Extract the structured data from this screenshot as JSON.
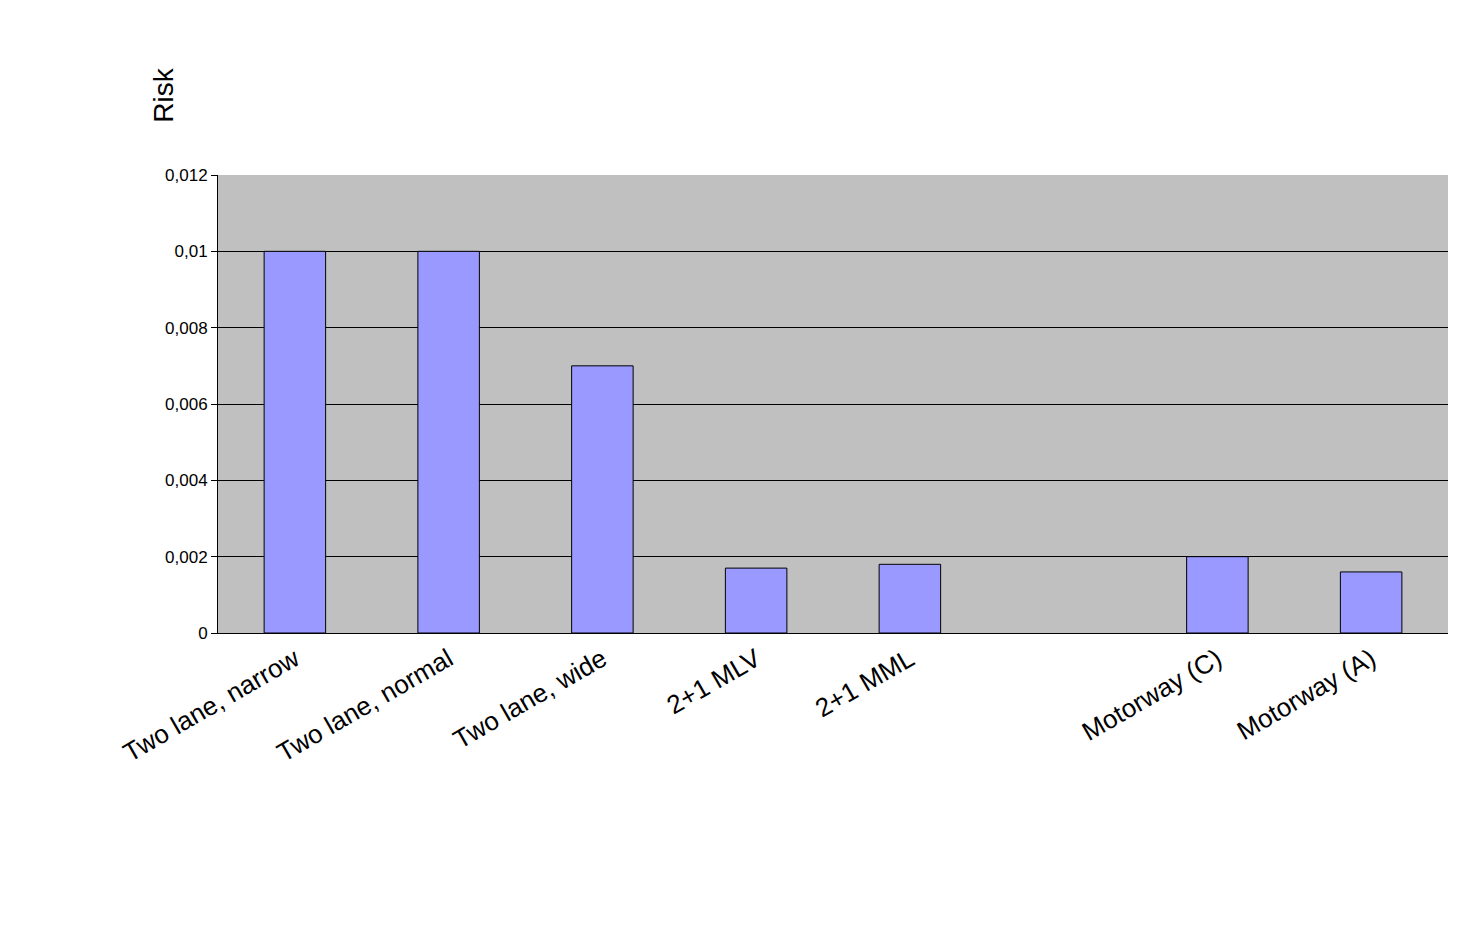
{
  "chart_data": {
    "type": "bar",
    "y_label": "Risk",
    "categories": [
      "Two lane, narrow",
      "Two lane, normal",
      "Two lane, wide",
      "2+1 MLV",
      "2+1 MML",
      null,
      "Motorway (C)",
      "Motorway (A)"
    ],
    "values": [
      0.01,
      0.01,
      0.007,
      0.0017,
      0.0018,
      null,
      0.002,
      0.0016
    ],
    "color": "#9999ff",
    "ylim": [
      0,
      0.012
    ],
    "yticks": [
      0,
      {
        "value": 0.002,
        "label": "0,002"
      },
      {
        "value": 0.004,
        "label": "0,004"
      },
      {
        "value": 0.006,
        "label": "0,006"
      },
      {
        "value": 0.008,
        "label": "0,008"
      },
      {
        "value": 0.01,
        "label": "0,01"
      },
      {
        "value": 0.012,
        "label": "0,012"
      }
    ],
    "grid": true
  }
}
